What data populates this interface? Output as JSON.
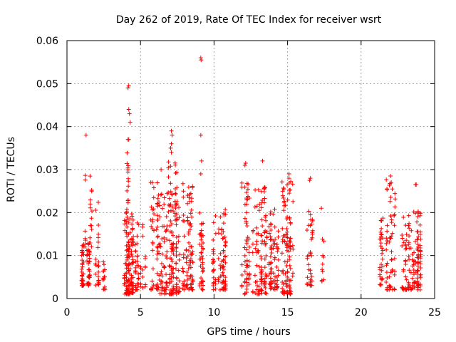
{
  "colors": {
    "marker": "#ff0000",
    "grid": "#a0a0a0",
    "axis": "#000000"
  },
  "chart_data": {
    "type": "scatter",
    "title": "Day 262 of 2019, Rate Of TEC Index for receiver wsrt",
    "xlabel": "GPS time / hours",
    "ylabel": "ROTI / TECUs",
    "xlim": [
      0,
      25
    ],
    "ylim": [
      0,
      0.06
    ],
    "xticks": [
      0,
      5,
      10,
      15,
      20,
      25
    ],
    "xtick_labels": [
      "0",
      "5",
      "10",
      "15",
      "20",
      "25"
    ],
    "yticks": [
      0,
      0.01,
      0.02,
      0.03,
      0.04,
      0.05,
      0.06
    ],
    "ytick_labels": [
      "0",
      "0.01",
      "0.02",
      "0.03",
      "0.04",
      "0.05",
      "0.06"
    ],
    "grid": true,
    "marker": "+",
    "series": [
      {
        "name": "ROTI",
        "clusters": [
          {
            "x": [
              1.0,
              1.6
            ],
            "y": [
              0.003,
              0.013
            ],
            "n": 70
          },
          {
            "x": [
              1.1,
              1.7
            ],
            "y": [
              0.012,
              0.031
            ],
            "n": 20
          },
          {
            "x": [
              1.9,
              2.2
            ],
            "y": [
              0.003,
              0.023
            ],
            "n": 25
          },
          {
            "x": [
              2.4,
              2.7
            ],
            "y": [
              0.002,
              0.011
            ],
            "n": 15
          },
          {
            "x": [
              3.9,
              4.5
            ],
            "y": [
              0.001,
              0.02
            ],
            "n": 140
          },
          {
            "x": [
              4.0,
              4.5
            ],
            "y": [
              0.02,
              0.034
            ],
            "n": 15
          },
          {
            "x": [
              4.6,
              5.5
            ],
            "y": [
              0.002,
              0.018
            ],
            "n": 50
          },
          {
            "x": [
              5.6,
              6.3
            ],
            "y": [
              0.002,
              0.027
            ],
            "n": 55
          },
          {
            "x": [
              6.3,
              7.7
            ],
            "y": [
              0.001,
              0.025
            ],
            "n": 150
          },
          {
            "x": [
              6.9,
              7.6
            ],
            "y": [
              0.018,
              0.032
            ],
            "n": 30
          },
          {
            "x": [
              7.8,
              8.6
            ],
            "y": [
              0.002,
              0.027
            ],
            "n": 90
          },
          {
            "x": [
              9.0,
              9.3
            ],
            "y": [
              0.002,
              0.02
            ],
            "n": 40
          },
          {
            "x": [
              9.9,
              10.9
            ],
            "y": [
              0.002,
              0.021
            ],
            "n": 90
          },
          {
            "x": [
              11.9,
              12.4
            ],
            "y": [
              0.001,
              0.027
            ],
            "n": 60
          },
          {
            "x": [
              12.6,
              13.6
            ],
            "y": [
              0.001,
              0.026
            ],
            "n": 100
          },
          {
            "x": [
              13.7,
              14.5
            ],
            "y": [
              0.002,
              0.021
            ],
            "n": 70
          },
          {
            "x": [
              14.6,
              15.4
            ],
            "y": [
              0.001,
              0.028
            ],
            "n": 110
          },
          {
            "x": [
              16.3,
              16.7
            ],
            "y": [
              0.003,
              0.024
            ],
            "n": 35
          },
          {
            "x": [
              17.2,
              17.5
            ],
            "y": [
              0.004,
              0.021
            ],
            "n": 10
          },
          {
            "x": [
              21.2,
              21.6
            ],
            "y": [
              0.003,
              0.02
            ],
            "n": 30
          },
          {
            "x": [
              21.7,
              22.3
            ],
            "y": [
              0.002,
              0.028
            ],
            "n": 60
          },
          {
            "x": [
              22.8,
              23.3
            ],
            "y": [
              0.002,
              0.02
            ],
            "n": 50
          },
          {
            "x": [
              23.4,
              24.1
            ],
            "y": [
              0.002,
              0.021
            ],
            "n": 90
          }
        ],
        "points": [
          [
            1.3,
            0.038
          ],
          [
            4.15,
            0.049
          ],
          [
            4.2,
            0.0495
          ],
          [
            4.2,
            0.044
          ],
          [
            4.25,
            0.043
          ],
          [
            4.15,
            0.037
          ],
          [
            4.2,
            0.037
          ],
          [
            4.3,
            0.041
          ],
          [
            7.1,
            0.039
          ],
          [
            7.15,
            0.038
          ],
          [
            7.1,
            0.036
          ],
          [
            7.05,
            0.035
          ],
          [
            7.1,
            0.034
          ],
          [
            9.1,
            0.056
          ],
          [
            9.12,
            0.0555
          ],
          [
            9.1,
            0.038
          ],
          [
            9.15,
            0.032
          ],
          [
            9.1,
            0.029
          ],
          [
            12.1,
            0.031
          ],
          [
            12.15,
            0.0315
          ],
          [
            13.3,
            0.032
          ],
          [
            15.1,
            0.029
          ],
          [
            15.1,
            0.028
          ],
          [
            16.55,
            0.028
          ],
          [
            16.5,
            0.0275
          ],
          [
            22.0,
            0.0285
          ],
          [
            22.05,
            0.027
          ],
          [
            23.7,
            0.0265
          ],
          [
            23.75,
            0.0265
          ],
          [
            17.3,
            0.021
          ],
          [
            17.4,
            0.01
          ],
          [
            6.4,
            0.03
          ],
          [
            5.7,
            0.027
          ]
        ]
      }
    ]
  }
}
